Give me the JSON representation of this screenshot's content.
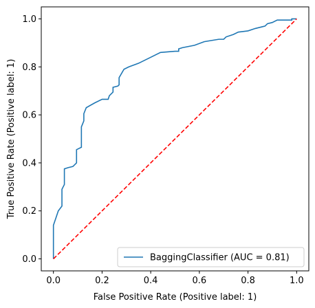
{
  "chart_data": {
    "type": "line",
    "xlabel": "False Positive Rate (Positive label: 1)",
    "ylabel": "True Positive Rate (Positive label: 1)",
    "xlim": [
      -0.05,
      1.05
    ],
    "ylim": [
      -0.05,
      1.05
    ],
    "xticks": [
      "0.0",
      "0.2",
      "0.4",
      "0.6",
      "0.8",
      "1.0"
    ],
    "yticks": [
      "0.0",
      "0.2",
      "0.4",
      "0.6",
      "0.8",
      "1.0"
    ],
    "legend_position": "lower-right",
    "grid": false,
    "series": [
      {
        "name": "BaggingClassifier (AUC = 0.81)",
        "color": "#1f77b4",
        "style": "solid",
        "points": [
          [
            0.0,
            0.0
          ],
          [
            0.0,
            0.14
          ],
          [
            0.01,
            0.17
          ],
          [
            0.02,
            0.2
          ],
          [
            0.035,
            0.22
          ],
          [
            0.035,
            0.29
          ],
          [
            0.045,
            0.31
          ],
          [
            0.045,
            0.375
          ],
          [
            0.06,
            0.38
          ],
          [
            0.08,
            0.385
          ],
          [
            0.095,
            0.4
          ],
          [
            0.095,
            0.455
          ],
          [
            0.105,
            0.46
          ],
          [
            0.115,
            0.465
          ],
          [
            0.115,
            0.55
          ],
          [
            0.125,
            0.575
          ],
          [
            0.125,
            0.605
          ],
          [
            0.135,
            0.63
          ],
          [
            0.17,
            0.65
          ],
          [
            0.2,
            0.665
          ],
          [
            0.225,
            0.665
          ],
          [
            0.23,
            0.68
          ],
          [
            0.245,
            0.695
          ],
          [
            0.245,
            0.715
          ],
          [
            0.265,
            0.72
          ],
          [
            0.27,
            0.725
          ],
          [
            0.27,
            0.755
          ],
          [
            0.29,
            0.79
          ],
          [
            0.31,
            0.8
          ],
          [
            0.35,
            0.815
          ],
          [
            0.4,
            0.84
          ],
          [
            0.44,
            0.86
          ],
          [
            0.5,
            0.865
          ],
          [
            0.515,
            0.865
          ],
          [
            0.515,
            0.875
          ],
          [
            0.53,
            0.88
          ],
          [
            0.58,
            0.89
          ],
          [
            0.62,
            0.905
          ],
          [
            0.68,
            0.915
          ],
          [
            0.7,
            0.915
          ],
          [
            0.71,
            0.925
          ],
          [
            0.74,
            0.935
          ],
          [
            0.76,
            0.945
          ],
          [
            0.8,
            0.95
          ],
          [
            0.83,
            0.96
          ],
          [
            0.85,
            0.965
          ],
          [
            0.87,
            0.97
          ],
          [
            0.88,
            0.98
          ],
          [
            0.9,
            0.985
          ],
          [
            0.92,
            0.995
          ],
          [
            0.98,
            0.995
          ],
          [
            0.98,
            1.0
          ],
          [
            1.0,
            1.0
          ]
        ]
      },
      {
        "name": "",
        "color": "#ff0000",
        "style": "dashed",
        "points": [
          [
            0.0,
            0.0
          ],
          [
            1.0,
            1.0
          ]
        ]
      }
    ]
  }
}
